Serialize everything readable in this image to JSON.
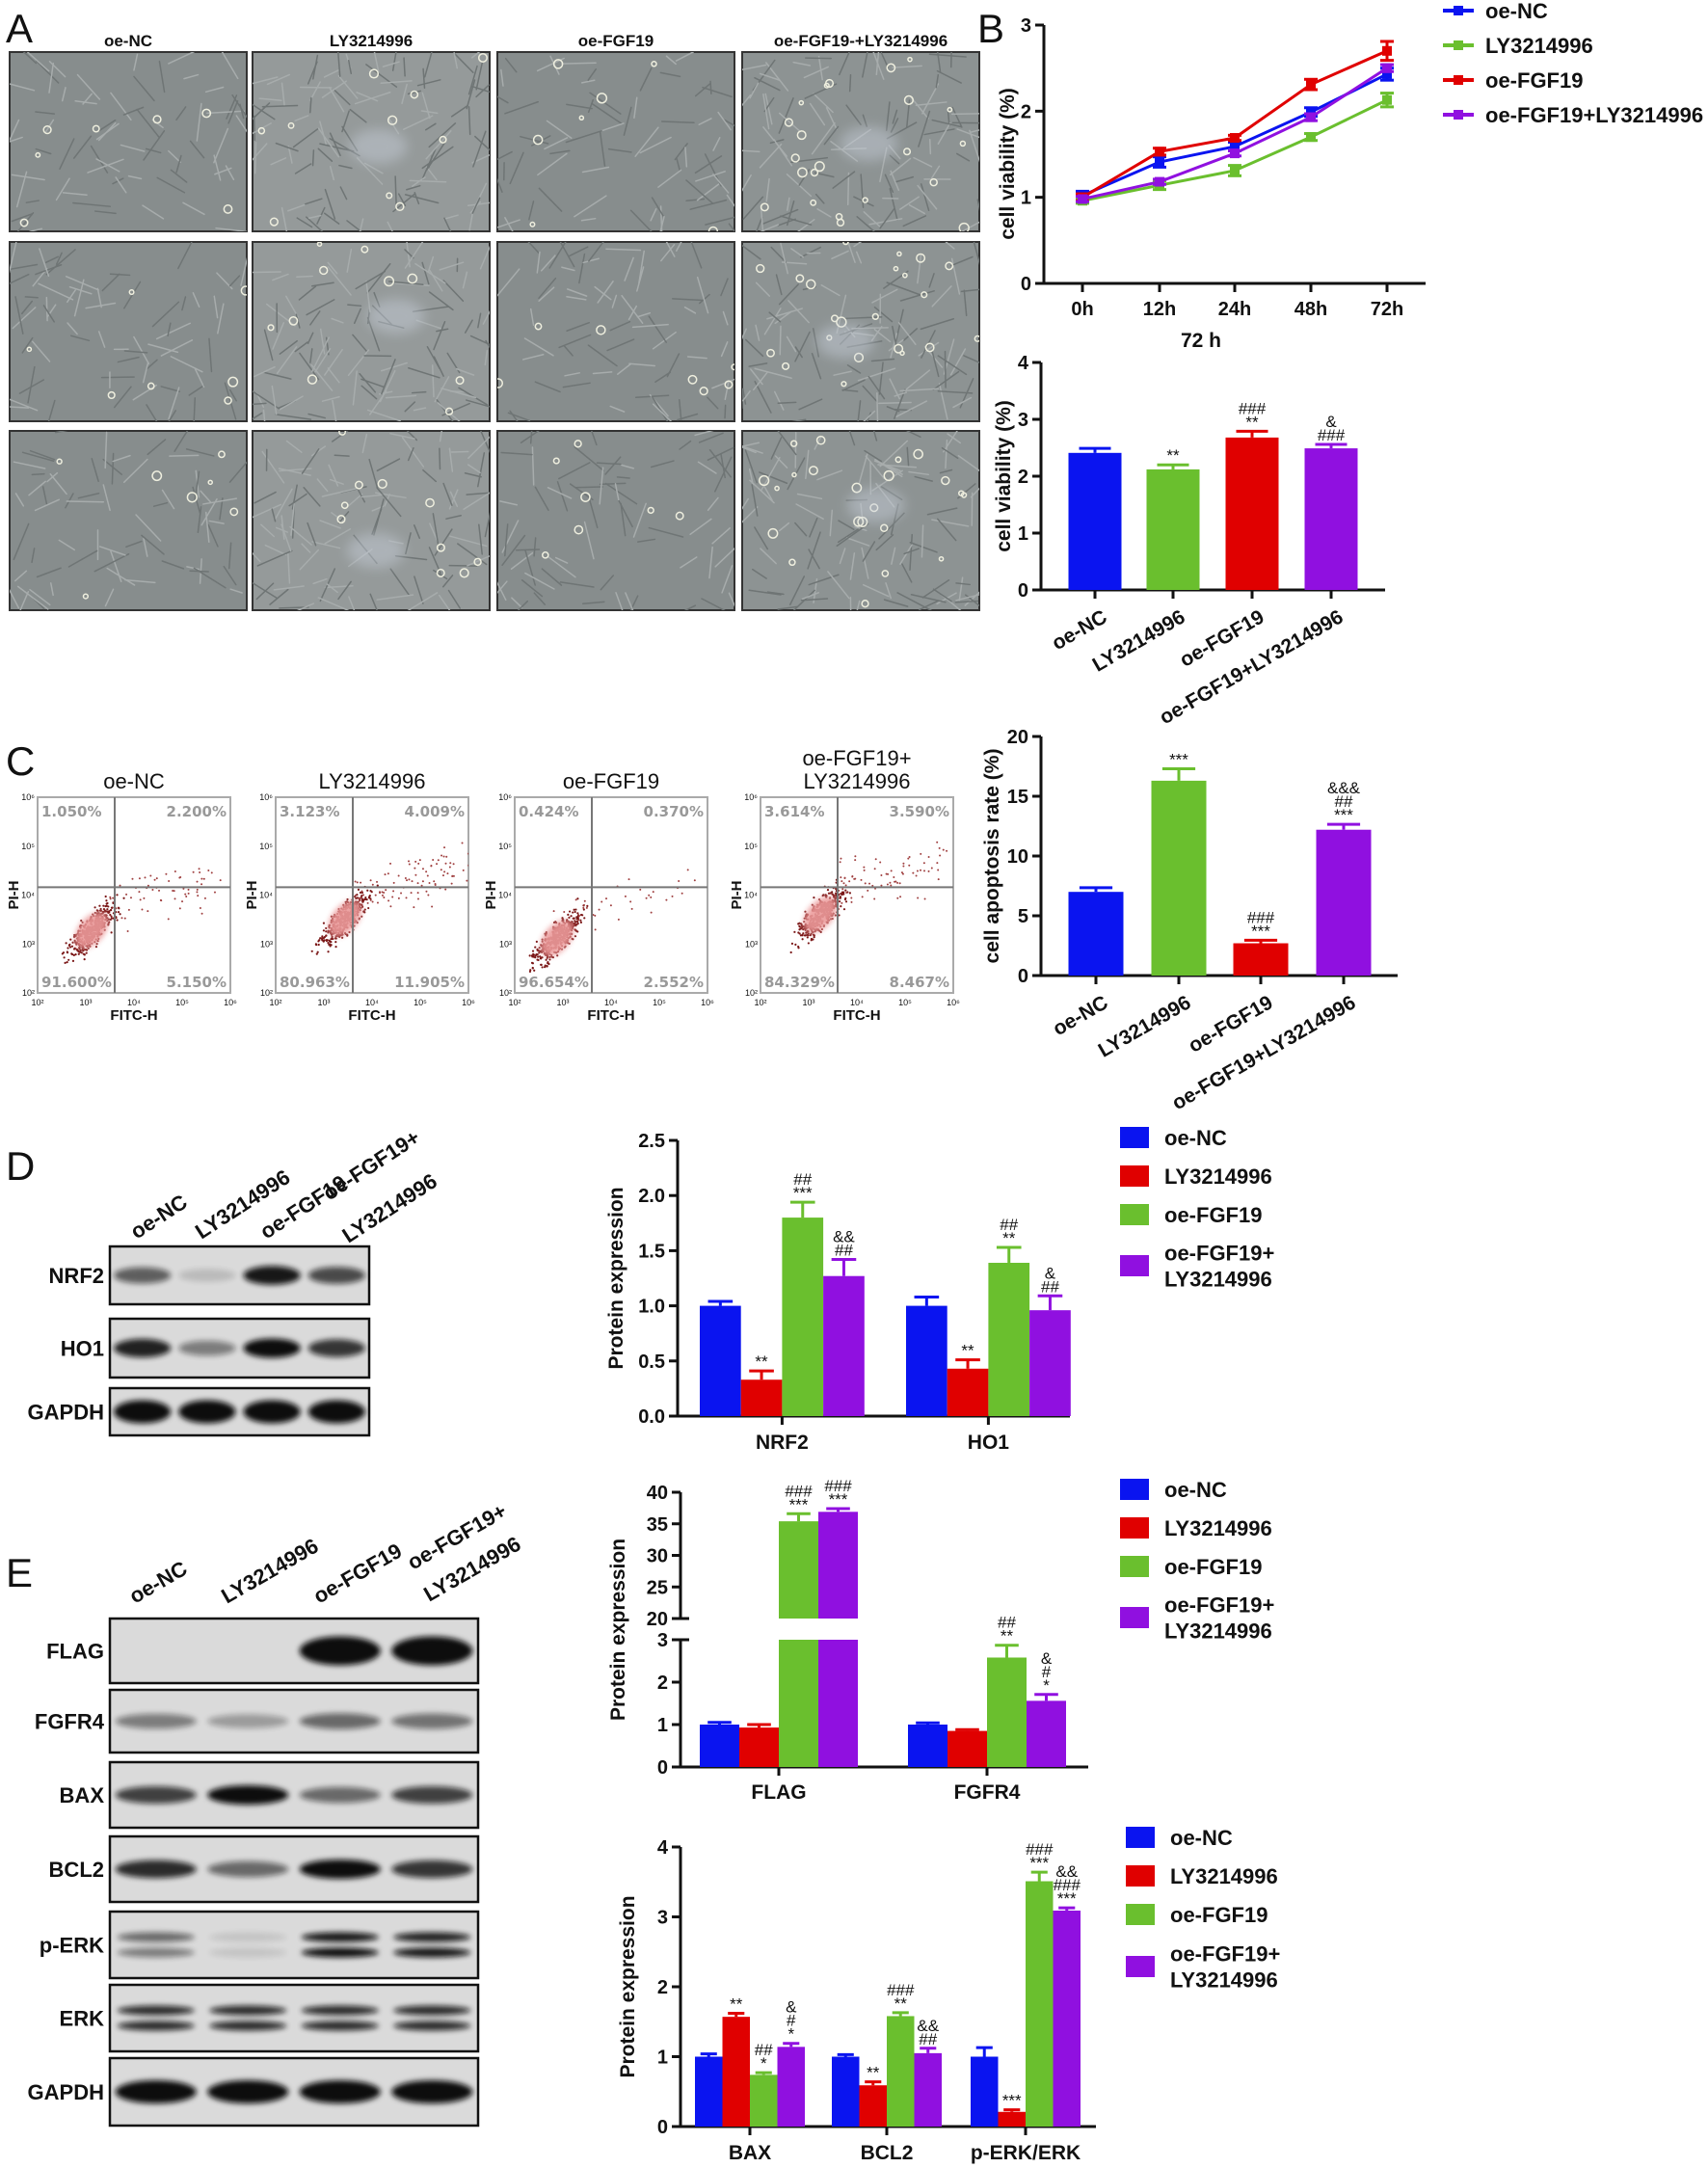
{
  "panel_labels": {
    "A": "A",
    "B": "B",
    "C": "C",
    "D": "D",
    "E": "E"
  },
  "panel_a": {
    "columns": [
      "oe-NC",
      "LY3214996",
      "oe-FGF19",
      "oe-FGF19-+LY3214996"
    ],
    "rows": 3
  },
  "flow": {
    "x_label": "FITC-H",
    "y_label": "PI-H",
    "ticks": [
      "10²",
      "10³",
      "10⁴",
      "10⁵",
      "10⁶"
    ],
    "plots": [
      {
        "title_lines": [
          "oe-NC"
        ],
        "UL": "1.050%",
        "UR": "2.200%",
        "LL": "91.600%",
        "LR": "5.150%"
      },
      {
        "title_lines": [
          "LY3214996"
        ],
        "UL": "3.123%",
        "UR": "4.009%",
        "LL": "80.963%",
        "LR": "11.905%"
      },
      {
        "title_lines": [
          "oe-FGF19"
        ],
        "UL": "0.424%",
        "UR": "0.370%",
        "LL": "96.654%",
        "LR": "2.552%"
      },
      {
        "title_lines": [
          "oe-FGF19+",
          "LY3214996"
        ],
        "UL": "3.614%",
        "UR": "3.590%",
        "LL": "84.329%",
        "LR": "8.467%"
      }
    ]
  },
  "blot_d": {
    "lanes": [
      [
        "oe-NC"
      ],
      [
        "LY3214996"
      ],
      [
        "oe-FGF19"
      ],
      [
        "oe-FGF19+",
        "LY3214996"
      ]
    ],
    "rows": [
      {
        "label": "NRF2",
        "band_intensity": [
          0.6,
          0.15,
          0.95,
          0.7
        ]
      },
      {
        "label": "HO1",
        "band_intensity": [
          0.9,
          0.45,
          1.0,
          0.8
        ]
      },
      {
        "label": "GAPDH",
        "band_intensity": [
          1,
          1,
          1,
          1
        ]
      }
    ]
  },
  "blot_e": {
    "lanes": [
      [
        "oe-NC"
      ],
      [
        "LY3214996"
      ],
      [
        "oe-FGF19"
      ],
      [
        "oe-FGF19+",
        "LY3214996"
      ]
    ],
    "rows": [
      {
        "label": "FLAG",
        "band_intensity": [
          0.0,
          0.0,
          1.0,
          1.0
        ]
      },
      {
        "label": "FGFR4",
        "band_intensity": [
          0.45,
          0.3,
          0.55,
          0.5
        ]
      },
      {
        "label": "BAX",
        "band_intensity": [
          0.75,
          1.0,
          0.55,
          0.75
        ]
      },
      {
        "label": "BCL2",
        "band_intensity": [
          0.85,
          0.55,
          1.0,
          0.8
        ]
      },
      {
        "label": "p-ERK",
        "band_intensity": [
          [
            0.55,
            0.45
          ],
          [
            0.1,
            0.1
          ],
          [
            0.95,
            1.0
          ],
          [
            0.9,
            0.95
          ]
        ]
      },
      {
        "label": "ERK",
        "band_intensity": [
          [
            0.85,
            0.85
          ],
          [
            0.85,
            0.85
          ],
          [
            0.85,
            0.85
          ],
          [
            0.85,
            0.85
          ]
        ]
      },
      {
        "label": "GAPDH",
        "band_intensity": [
          1,
          1,
          1,
          1
        ]
      }
    ]
  },
  "chart_data": [
    {
      "id": "b-line",
      "type": "line",
      "x": [
        "0h",
        "12h",
        "24h",
        "48h",
        "72h"
      ],
      "ylabel": "cell viability (%)",
      "ylim": [
        0,
        3
      ],
      "yticks": [
        "0",
        "1",
        "2",
        "3"
      ],
      "legend_position": "top-right",
      "series": [
        {
          "name": "oe-NC",
          "color": "#0a14f0",
          "values": [
            1.02,
            1.41,
            1.59,
            1.99,
            2.43
          ],
          "errors": [
            0.05,
            0.06,
            0.05,
            0.05,
            0.07
          ]
        },
        {
          "name": "LY3214996",
          "color": "#6abf2e",
          "values": [
            0.96,
            1.14,
            1.31,
            1.7,
            2.13
          ],
          "errors": [
            0.03,
            0.05,
            0.06,
            0.04,
            0.08
          ]
        },
        {
          "name": "oe-FGF19",
          "color": "#e00000",
          "values": [
            1.0,
            1.53,
            1.69,
            2.31,
            2.7
          ],
          "errors": [
            0.04,
            0.04,
            0.03,
            0.06,
            0.11
          ]
        },
        {
          "name": "oe-FGF19+LY3214996",
          "color": "#9010e0",
          "values": [
            0.98,
            1.18,
            1.51,
            1.93,
            2.5
          ],
          "errors": [
            0.03,
            0.03,
            0.03,
            0.04,
            0.04
          ]
        }
      ]
    },
    {
      "id": "b-bar",
      "type": "bar",
      "title": "72 h",
      "categories": [
        "oe-NC",
        "LY3214996",
        "oe-FGF19",
        "oe-FGF19+LY3214996"
      ],
      "values": [
        2.41,
        2.12,
        2.68,
        2.49
      ],
      "errors": [
        0.08,
        0.08,
        0.11,
        0.07
      ],
      "colors": [
        "#0a14f0",
        "#6abf2e",
        "#e00000",
        "#9010e0"
      ],
      "annotations": [
        [],
        [
          "**"
        ],
        [
          "###",
          "**"
        ],
        [
          "&",
          "###"
        ]
      ],
      "ylabel": "cell viability (%)",
      "ylim": [
        0,
        4
      ],
      "yticks": [
        "0",
        "1",
        "2",
        "3",
        "4"
      ]
    },
    {
      "id": "c-bar",
      "type": "bar",
      "categories": [
        "oe-NC",
        "LY3214996",
        "oe-FGF19",
        "oe-FGF19+LY3214996"
      ],
      "values": [
        7.0,
        16.3,
        2.7,
        12.2
      ],
      "errors": [
        0.35,
        1.0,
        0.25,
        0.45
      ],
      "colors": [
        "#0a14f0",
        "#6abf2e",
        "#e00000",
        "#9010e0"
      ],
      "annotations": [
        [],
        [
          "***"
        ],
        [
          "###",
          "***"
        ],
        [
          "&&&",
          "##",
          "***"
        ]
      ],
      "ylabel": "cell apoptosis rate (%)",
      "ylim": [
        0,
        20
      ],
      "yticks": [
        "0",
        "5",
        "10",
        "15",
        "20"
      ]
    },
    {
      "id": "d-bar",
      "type": "bar",
      "categories": [
        "NRF2",
        "HO1"
      ],
      "ylabel": "Protein expression",
      "ylim": [
        0,
        2.5
      ],
      "yticks": [
        "0.0",
        "0.5",
        "1.0",
        "1.5",
        "2.0",
        "2.5"
      ],
      "legend_position": "right",
      "legend": [
        {
          "lines": [
            "oe-NC"
          ]
        },
        {
          "lines": [
            "LY3214996"
          ]
        },
        {
          "lines": [
            "oe-FGF19"
          ]
        },
        {
          "lines": [
            "oe-FGF19+",
            "LY3214996"
          ]
        }
      ],
      "series": [
        {
          "color": "#0a14f0",
          "values": [
            1.0,
            1.0
          ],
          "errors": [
            0.04,
            0.08
          ]
        },
        {
          "color": "#e00000",
          "values": [
            0.33,
            0.43
          ],
          "errors": [
            0.08,
            0.08
          ]
        },
        {
          "color": "#6abf2e",
          "values": [
            1.8,
            1.39
          ],
          "errors": [
            0.14,
            0.14
          ]
        },
        {
          "color": "#9010e0",
          "values": [
            1.27,
            0.96
          ],
          "errors": [
            0.15,
            0.13
          ]
        }
      ],
      "annotations": [
        [
          [],
          []
        ],
        [
          [
            "**"
          ],
          [
            "**"
          ]
        ],
        [
          [
            "##",
            "***"
          ],
          [
            "##",
            "**"
          ]
        ],
        [
          [
            "&&",
            "##"
          ],
          [
            "&",
            "##"
          ]
        ]
      ]
    },
    {
      "id": "e-bar-flag",
      "type": "bar",
      "categories": [
        "FLAG",
        "FGFR4"
      ],
      "ylabel": "Protein expression",
      "ylim_lower": [
        0,
        3
      ],
      "ylim_upper": [
        20,
        40
      ],
      "yticks": [
        "0",
        "1",
        "2",
        "3",
        "20",
        "25",
        "30",
        "35",
        "40"
      ],
      "legend_position": "right",
      "legend": [
        {
          "lines": [
            "oe-NC"
          ]
        },
        {
          "lines": [
            "LY3214996"
          ]
        },
        {
          "lines": [
            "oe-FGF19"
          ]
        },
        {
          "lines": [
            "oe-FGF19+",
            "LY3214996"
          ]
        }
      ],
      "series": [
        {
          "color": "#0a14f0",
          "values": [
            1.0,
            1.0
          ],
          "errors": [
            0.05,
            0.04
          ]
        },
        {
          "color": "#e00000",
          "values": [
            0.93,
            0.85
          ],
          "errors": [
            0.07,
            0.03
          ]
        },
        {
          "color": "#6abf2e",
          "values": [
            35.4,
            2.58
          ],
          "errors": [
            1.2,
            0.29
          ]
        },
        {
          "color": "#9010e0",
          "values": [
            36.9,
            1.56
          ],
          "errors": [
            0.5,
            0.15
          ]
        }
      ],
      "annotations": [
        [
          [],
          []
        ],
        [
          [],
          []
        ],
        [
          [
            "###",
            "***"
          ],
          [
            "##",
            "**"
          ]
        ],
        [
          [
            "###",
            "***"
          ],
          [
            "&",
            "#",
            "*"
          ]
        ]
      ]
    },
    {
      "id": "e-bar-apoptosis",
      "type": "bar",
      "categories": [
        "BAX",
        "BCL2",
        "p-ERK/ERK"
      ],
      "ylabel": "Protein expression",
      "ylim": [
        0,
        4
      ],
      "yticks": [
        "0",
        "1",
        "2",
        "3",
        "4"
      ],
      "legend_position": "right",
      "legend": [
        {
          "lines": [
            "oe-NC"
          ]
        },
        {
          "lines": [
            "LY3214996"
          ]
        },
        {
          "lines": [
            "oe-FGF19"
          ]
        },
        {
          "lines": [
            "oe-FGF19+",
            "LY3214996"
          ]
        }
      ],
      "series": [
        {
          "color": "#0a14f0",
          "values": [
            1.0,
            1.0,
            1.0
          ],
          "errors": [
            0.04,
            0.03,
            0.13
          ]
        },
        {
          "color": "#e00000",
          "values": [
            1.57,
            0.59,
            0.21
          ],
          "errors": [
            0.05,
            0.05,
            0.03
          ]
        },
        {
          "color": "#6abf2e",
          "values": [
            0.74,
            1.58,
            3.51
          ],
          "errors": [
            0.03,
            0.05,
            0.13
          ]
        },
        {
          "color": "#9010e0",
          "values": [
            1.14,
            1.05,
            3.09
          ],
          "errors": [
            0.05,
            0.07,
            0.04
          ]
        }
      ],
      "annotations": [
        [
          [],
          [],
          []
        ],
        [
          [
            "**"
          ],
          [
            "**"
          ],
          [
            "***"
          ]
        ],
        [
          [
            "##",
            "*"
          ],
          [
            "###",
            "**"
          ],
          [
            "###",
            "***"
          ]
        ],
        [
          [
            "&",
            "#",
            "*"
          ],
          [
            "&&",
            "##"
          ],
          [
            "&&",
            "###",
            "***"
          ]
        ]
      ]
    }
  ]
}
